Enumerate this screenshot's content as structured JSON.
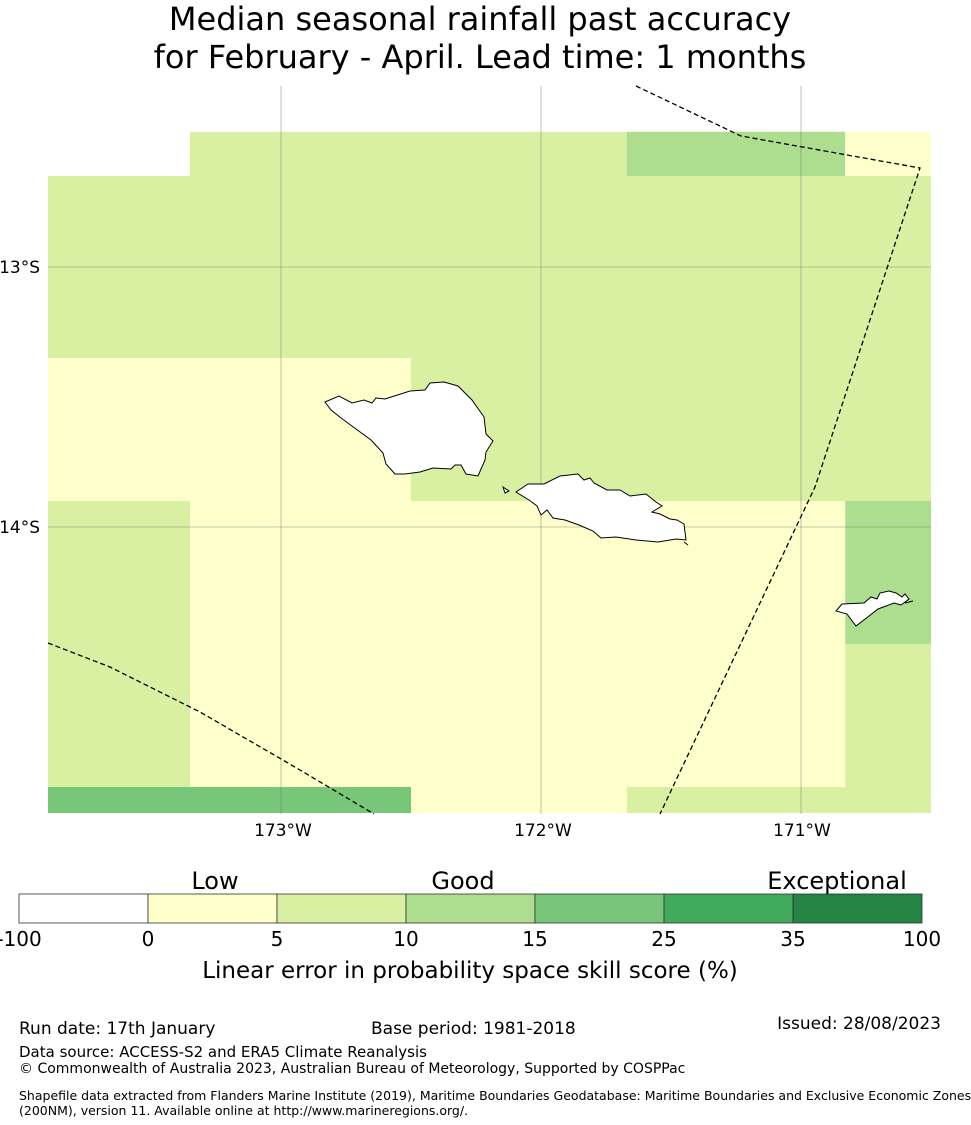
{
  "title": {
    "line1": "Median seasonal rainfall past accuracy",
    "line2": "for February - April. Lead time: 1 months"
  },
  "map": {
    "lat_labels": [
      "13°S",
      "14°S"
    ],
    "lon_labels": [
      "173°W",
      "172°W",
      "171°W"
    ],
    "grid_cells": [
      {
        "lon": [
          -173.9,
          -173.35
        ],
        "lat": [
          -12.48,
          -12.65
        ],
        "value": null
      },
      {
        "lon": [
          -173.35,
          -171.67
        ],
        "lat": [
          -12.48,
          -12.65
        ],
        "value": 7
      },
      {
        "lon": [
          -171.67,
          -170.83
        ],
        "lat": [
          -12.48,
          -12.65
        ],
        "value": 12
      },
      {
        "lon": [
          -170.83,
          -170.5
        ],
        "lat": [
          -12.48,
          -12.65
        ],
        "value": 3
      },
      {
        "lon": [
          -173.9,
          -170.5
        ],
        "lat": [
          -12.65,
          -13.35
        ],
        "value": 7
      },
      {
        "lon": [
          -173.9,
          -172.5
        ],
        "lat": [
          -13.35,
          -13.9
        ],
        "value": 3
      },
      {
        "lon": [
          -172.5,
          -170.5
        ],
        "lat": [
          -13.35,
          -13.9
        ],
        "value": 7
      },
      {
        "lon": [
          -173.9,
          -173.35
        ],
        "lat": [
          -13.9,
          -15.0
        ],
        "value": 7
      },
      {
        "lon": [
          -173.35,
          -170.83
        ],
        "lat": [
          -13.9,
          -15.0
        ],
        "value": 3
      },
      {
        "lon": [
          -170.83,
          -170.5
        ],
        "lat": [
          -13.9,
          -14.45
        ],
        "value": 12
      },
      {
        "lon": [
          -170.83,
          -170.5
        ],
        "lat": [
          -14.45,
          -15.0
        ],
        "value": 7
      },
      {
        "lon": [
          -173.9,
          -172.5
        ],
        "lat": [
          -15.0,
          -15.1
        ],
        "value": 20
      },
      {
        "lon": [
          -172.5,
          -171.67
        ],
        "lat": [
          -15.0,
          -15.1
        ],
        "value": 3
      },
      {
        "lon": [
          -171.67,
          -170.5
        ],
        "lat": [
          -15.0,
          -15.1
        ],
        "value": 7
      }
    ]
  },
  "colorbar": {
    "categories": [
      "Low",
      "Good",
      "Exceptional"
    ],
    "ticks": [
      "-100",
      "0",
      "5",
      "10",
      "15",
      "25",
      "35",
      "100"
    ],
    "colors": [
      "#ffffff",
      "#ffffcc",
      "#d9f0a3",
      "#addd8e",
      "#78c679",
      "#41ab5d",
      "#238443"
    ],
    "title": "Linear error in probability space skill score (%)"
  },
  "footer": {
    "run_date": "Run date: 17th January",
    "base_period": "Base period: 1981-2018",
    "issued": "Issued: 28/08/2023",
    "data_source": "Data source: ACCESS-S2 and ERA5 Climate Reanalysis",
    "copyright": "© Commonwealth of Australia 2023, Australian Bureau of Meteorology, Supported by COSPPac",
    "shapefile_line1": "Shapefile data extracted from Flanders Marine Institute (2019), Maritime Boundaries Geodatabase: Maritime Boundaries and Exclusive Economic Zones",
    "shapefile_line2": "(200NM), version 11. Available online at http://www.marineregions.org/."
  }
}
